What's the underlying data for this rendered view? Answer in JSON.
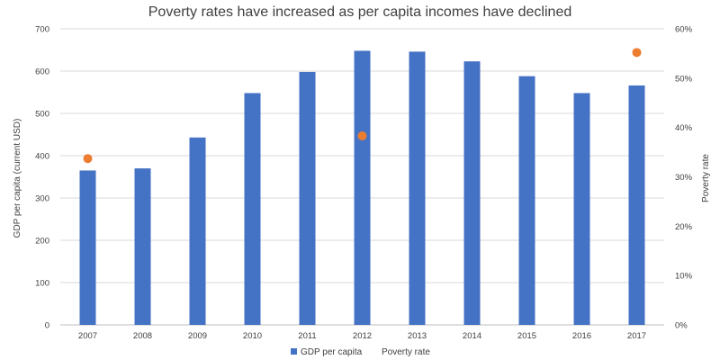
{
  "chart_data": {
    "type": "bar",
    "title": "Poverty rates have increased as per capita incomes have declined",
    "categories": [
      "2007",
      "2008",
      "2009",
      "2010",
      "2011",
      "2012",
      "2013",
      "2014",
      "2015",
      "2016",
      "2017"
    ],
    "series": [
      {
        "name": "GDP per capita",
        "type": "bar",
        "axis": "left",
        "color": "#4472C4",
        "values": [
          365,
          370,
          443,
          548,
          598,
          648,
          646,
          623,
          588,
          548,
          566
        ]
      },
      {
        "name": "Poverty rate",
        "type": "scatter",
        "axis": "right",
        "color": "#ED7D31",
        "values": [
          0.337,
          null,
          null,
          null,
          null,
          0.383,
          null,
          null,
          null,
          null,
          0.552
        ]
      }
    ],
    "ylabel": "GDP per capita (current USD)",
    "y2label": "Poverty rate",
    "ylim": [
      0,
      700
    ],
    "y2lim": [
      0,
      0.6
    ],
    "yticks": [
      "0",
      "100",
      "200",
      "300",
      "400",
      "500",
      "600",
      "700"
    ],
    "y2ticks": [
      "0%",
      "10%",
      "20%",
      "30%",
      "40%",
      "50%",
      "60%"
    ],
    "grid": true,
    "legend": "bottom"
  }
}
